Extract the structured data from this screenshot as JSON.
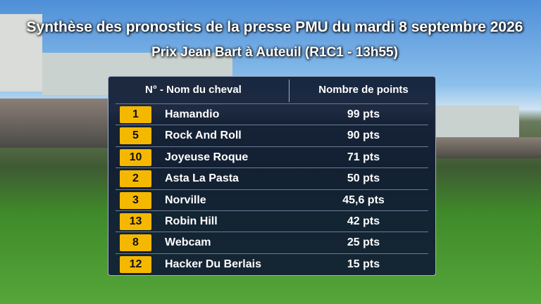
{
  "header": {
    "title": "Synthèse des pronostics de la presse PMU du mardi 8 septembre 2026",
    "subtitle": "Prix Jean Bart à Auteuil (R1C1 - 13h55)"
  },
  "table": {
    "columns": [
      "N° - Nom du cheval",
      "Nombre de points"
    ],
    "rows": [
      [
        "1",
        "Hamandio",
        "99 pts"
      ],
      [
        "5",
        "Rock And Roll",
        "90 pts"
      ],
      [
        "10",
        "Joyeuse Roque",
        "71 pts"
      ],
      [
        "2",
        "Asta La Pasta",
        "50 pts"
      ],
      [
        "3",
        "Norville",
        "45,6 pts"
      ],
      [
        "13",
        "Robin Hill",
        "42 pts"
      ],
      [
        "8",
        "Webcam",
        "25 pts"
      ],
      [
        "12",
        "Hacker Du Berlais",
        "15 pts"
      ]
    ]
  }
}
